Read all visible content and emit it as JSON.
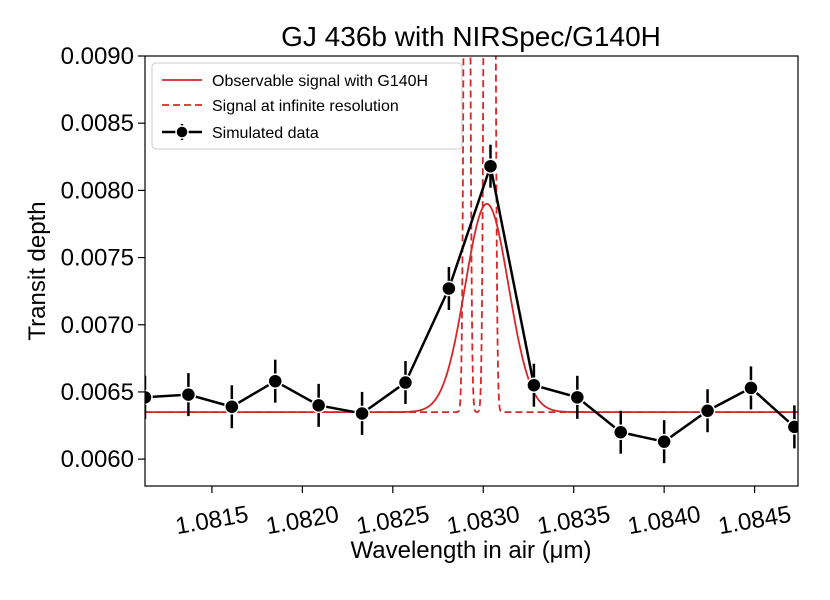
{
  "chart_data": {
    "type": "line",
    "title": "GJ 436b with NIRSpec/G140H",
    "xlabel": "Wavelength in air (μm)",
    "ylabel": "Transit depth",
    "xlim": [
      1.08113,
      1.08474
    ],
    "ylim": [
      0.0058,
      0.009
    ],
    "xticks": [
      "1.0815",
      "1.0820",
      "1.0825",
      "1.0830",
      "1.0835",
      "1.0840",
      "1.0845"
    ],
    "xtick_values": [
      1.0815,
      1.082,
      1.0825,
      1.083,
      1.0835,
      1.084,
      1.0845
    ],
    "yticks": [
      "0.0060",
      "0.0065",
      "0.0070",
      "0.0075",
      "0.0080",
      "0.0085",
      "0.0090"
    ],
    "ytick_values": [
      0.006,
      0.0065,
      0.007,
      0.0075,
      0.008,
      0.0085,
      0.009
    ],
    "grid": false,
    "legend_position": "top-left",
    "series": [
      {
        "name": "Observable signal with G140H",
        "style": "solid",
        "color": "#d62728",
        "baseline": 0.00635,
        "peak_center": 1.08302,
        "peak_height": 0.00155,
        "peak_sigma": 0.00012
      },
      {
        "name": "Signal at infinite resolution",
        "style": "dashed",
        "color": "#d62728",
        "baseline": 0.00635,
        "line_centers": [
          1.08291,
          1.08302,
          1.08305
        ],
        "line_sigma": 1.2e-05
      },
      {
        "name": "Simulated data",
        "style": "markers-errorbars",
        "color": "#000000",
        "x": [
          1.08113,
          1.08137,
          1.08161,
          1.08185,
          1.08209,
          1.08233,
          1.08257,
          1.08281,
          1.08304,
          1.08328,
          1.08352,
          1.08376,
          1.084,
          1.08424,
          1.08448,
          1.08472
        ],
        "y": [
          0.00646,
          0.00648,
          0.00639,
          0.00658,
          0.0064,
          0.00634,
          0.00657,
          0.00727,
          0.00818,
          0.00655,
          0.00646,
          0.0062,
          0.00613,
          0.00636,
          0.00653,
          0.00624
        ],
        "yerr": [
          0.00016,
          0.00016,
          0.00016,
          0.00016,
          0.00016,
          0.00016,
          0.00016,
          0.00016,
          0.00016,
          0.00016,
          0.00016,
          0.00016,
          0.00016,
          0.00016,
          0.00016,
          0.00016
        ]
      }
    ]
  }
}
